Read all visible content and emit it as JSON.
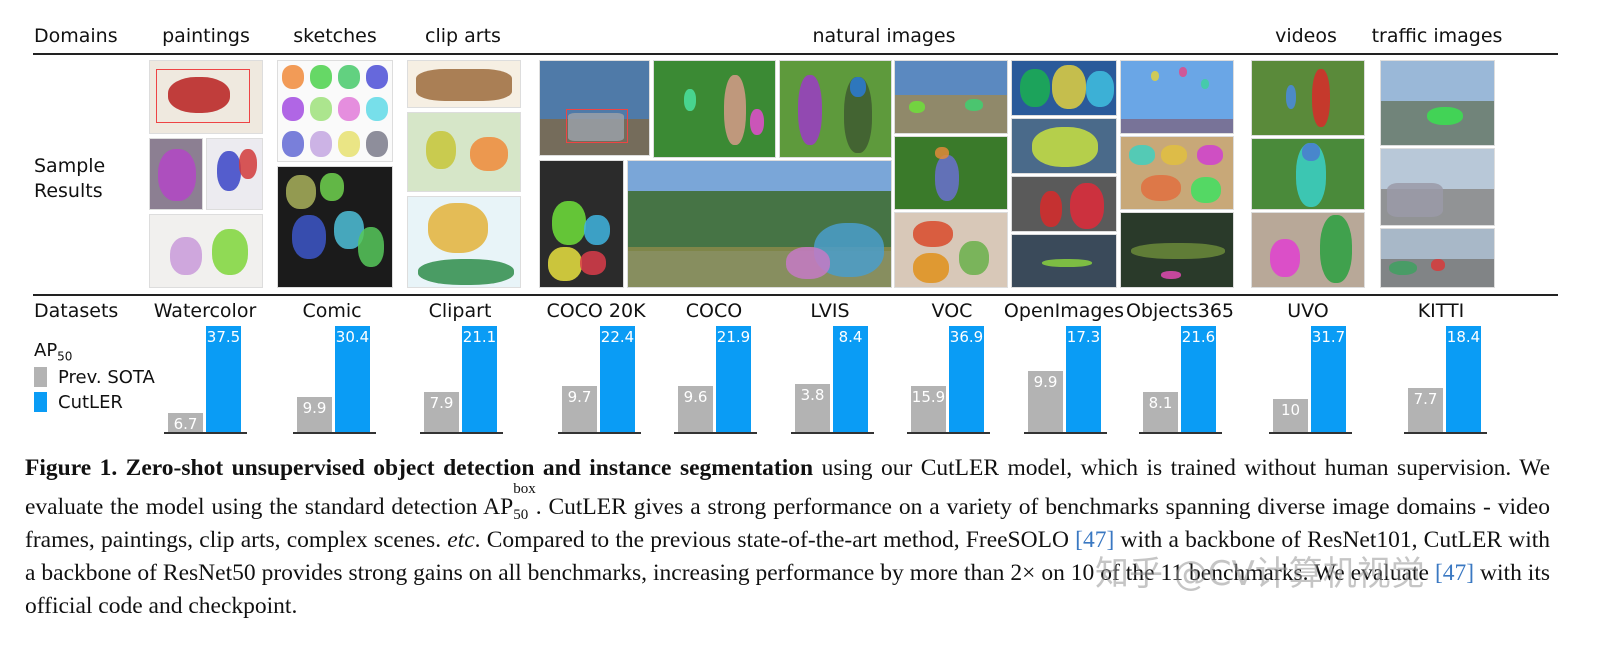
{
  "header": {
    "domains_label": "Domains",
    "sample_results_label_line1": "Sample",
    "sample_results_label_line2": "Results",
    "datasets_label": "Datasets",
    "metric_label": "AP",
    "metric_sub": "50"
  },
  "domains": [
    "paintings",
    "sketches",
    "clip arts",
    "natural images",
    "videos",
    "traffic images"
  ],
  "legend": [
    {
      "label": "Prev. SOTA",
      "color": "#b3b3b3"
    },
    {
      "label": "CutLER",
      "color": "#0a9cf5"
    }
  ],
  "chart_data": {
    "type": "bar",
    "categories": [
      "Watercolor",
      "Comic",
      "Clipart",
      "COCO 20K",
      "COCO",
      "LVIS",
      "VOC",
      "OpenImages",
      "Objects365",
      "UVO",
      "KITTI"
    ],
    "series": [
      {
        "name": "Prev. SOTA",
        "values": [
          6.7,
          9.9,
          7.9,
          9.7,
          9.6,
          3.8,
          15.9,
          9.9,
          8.1,
          10,
          7.7
        ],
        "labels": [
          "6.7",
          "9.9",
          "7.9",
          "9.7",
          "9.6",
          "3.8",
          "15.9",
          "9.9",
          "8.1",
          "10",
          "7.7"
        ],
        "color": "#b3b3b3"
      },
      {
        "name": "CutLER",
        "values": [
          37.5,
          30.4,
          21.1,
          22.4,
          21.9,
          8.4,
          36.9,
          17.3,
          21.6,
          31.7,
          18.4
        ],
        "labels": [
          "37.5",
          "30.4",
          "21.1",
          "22.4",
          "21.9",
          "8.4",
          "36.9",
          "17.3",
          "21.6",
          "31.7",
          "18.4"
        ],
        "color": "#0a9cf5"
      }
    ],
    "ylabel": "AP50",
    "note": "Bars within each dataset are independently scaled so the CutLER bar reaches full height."
  },
  "caption": {
    "lead": "Figure 1.  Zero-shot unsupervised object detection and instance segmentation",
    "t1": " using our CutLER model, which is trained without human supervision.  We evaluate the model using the standard detection AP",
    "ap_sup": "box",
    "ap_sub": "50",
    "t2": ".  CutLER gives a strong performance on a variety of benchmarks spanning diverse image domains - video frames, paintings, clip arts, complex scenes. ",
    "etc": "etc",
    "t3": ".  Compared to the previous state-of-the-art method, FreeSOLO ",
    "cite1": "[47]",
    "t4": " with a backbone of ResNet101, CutLER with a backbone of ResNet50 provides strong gains on all benchmarks, increasing performance by more than 2× on 10 of the 11 benchmarks. We evaluate ",
    "cite2": "[47]",
    "t5": " with its official code and checkpoint."
  },
  "watermark": "知乎 @CV计算机视觉"
}
